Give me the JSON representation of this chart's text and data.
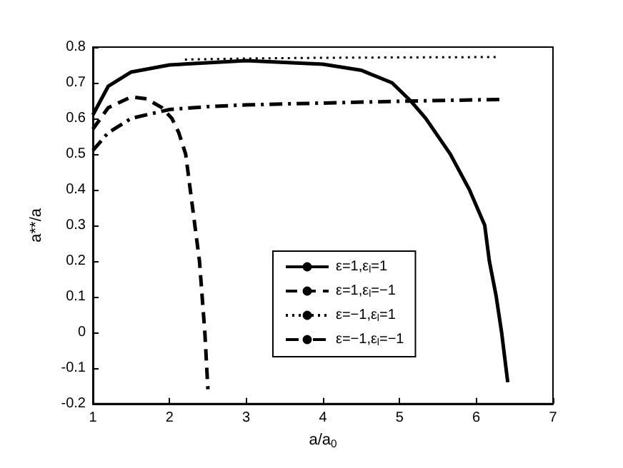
{
  "chart_data": {
    "type": "line",
    "xlabel": "a/a$_{0}$",
    "ylabel": "a**/a",
    "xlim": [
      1,
      7
    ],
    "ylim": [
      -0.2,
      0.8
    ],
    "xticks": [
      1,
      2,
      3,
      4,
      5,
      6,
      7
    ],
    "yticks": [
      -0.2,
      -0.1,
      0,
      0.1,
      0.2,
      0.3,
      0.4,
      0.5,
      0.6,
      0.7,
      0.8
    ],
    "grid": false,
    "legend": "center",
    "marker": "none",
    "series": [
      {
        "name": "ε=1,ε$_{l}$=1",
        "color": "#000000",
        "line_style": "solid",
        "x": [
          1,
          1.2,
          1.5,
          2,
          3,
          4,
          4.5,
          4.9,
          5.14,
          5.34,
          5.66,
          5.91,
          6.11,
          6.17,
          6.26,
          6.33,
          6.41
        ],
        "values": [
          0.61,
          0.69,
          0.73,
          0.75,
          0.762,
          0.752,
          0.735,
          0.7,
          0.65,
          0.6,
          0.5,
          0.4,
          0.3,
          0.2,
          0.1,
          0,
          -0.14
        ]
      },
      {
        "name": "ε=1,ε$_{l}$=−1",
        "color": "#000000",
        "line_style": "dashed",
        "x": [
          1,
          1.2,
          1.5,
          1.7,
          1.9,
          2.03,
          2.12,
          2.21,
          2.27,
          2.33,
          2.39,
          2.46,
          2.5
        ],
        "values": [
          0.57,
          0.63,
          0.66,
          0.655,
          0.63,
          0.6,
          0.56,
          0.5,
          0.4,
          0.3,
          0.2,
          0,
          -0.16
        ]
      },
      {
        "name": "ε=−1,ε$_{l}$=1",
        "color": "#000000",
        "line_style": "dotted",
        "x": [
          2.2,
          3,
          4,
          5,
          6.3
        ],
        "values": [
          0.765,
          0.768,
          0.77,
          0.771,
          0.772
        ]
      },
      {
        "name": "ε=−1,ε$_{l}$=−1",
        "color": "#000000",
        "line_style": "dashdot",
        "x": [
          1,
          1.2,
          1.5,
          2,
          2.5,
          3,
          4,
          5,
          6,
          6.3
        ],
        "values": [
          0.51,
          0.56,
          0.6,
          0.625,
          0.633,
          0.638,
          0.643,
          0.648,
          0.652,
          0.653
        ]
      }
    ]
  }
}
